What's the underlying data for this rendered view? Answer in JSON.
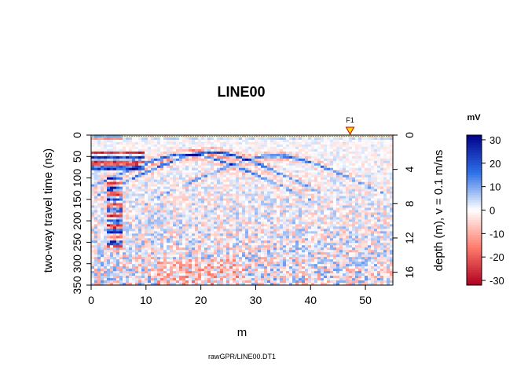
{
  "chart_data": {
    "type": "heatmap",
    "title": "LINE00",
    "xlabel": "m",
    "ylabel": "two-way travel time (ns)",
    "y2label": "depth (m),   v = 0.1 m/ns",
    "source_label": "rawGPR/LINE00.DT1",
    "xlim": [
      0,
      55
    ],
    "ylim": [
      0,
      350
    ],
    "y2lim": [
      0,
      17.5
    ],
    "x_ticks": [
      0,
      10,
      20,
      30,
      40,
      50
    ],
    "y_ticks": [
      0,
      50,
      100,
      150,
      200,
      250,
      300,
      350
    ],
    "y2_ticks": [
      0,
      4,
      8,
      12,
      16
    ],
    "fiducial": {
      "label": "F1",
      "x": 47.2,
      "color": "#ffd700"
    },
    "colorbar": {
      "unit": "mV",
      "range": [
        -32,
        32
      ],
      "ticks": [
        30,
        20,
        10,
        0,
        -10,
        -20,
        -30
      ],
      "colors": {
        "max": "#00008b",
        "mid_high": "#2d6fe8",
        "center": "#ffffff",
        "mid_low": "#ff7b6b",
        "min": "#b00020"
      }
    },
    "surface_line_color": "#66cc00",
    "features": [
      {
        "type": "hyperbola",
        "apex_x": 22.0,
        "apex_t": 40,
        "amplitude": 25
      },
      {
        "type": "hyperbola",
        "apex_x": 17.5,
        "apex_t": 45,
        "amplitude": 22
      },
      {
        "type": "hyperbola",
        "apex_x": 33.5,
        "apex_t": 48,
        "amplitude": 18
      },
      {
        "type": "reflector",
        "x_range": [
          0,
          10
        ],
        "t_range": [
          40,
          80
        ],
        "amplitude": -30
      },
      {
        "type": "reflector",
        "x_range": [
          3,
          6
        ],
        "t_range": [
          100,
          260
        ],
        "amplitude": 28
      }
    ]
  }
}
